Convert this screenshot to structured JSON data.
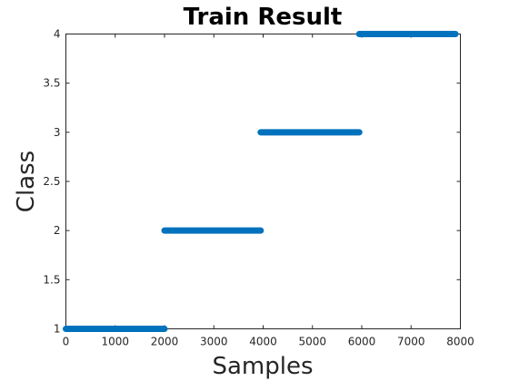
{
  "chart_data": {
    "type": "scatter",
    "title": "Train Result",
    "xlabel": "Samples",
    "ylabel": "Class",
    "xlim": [
      0,
      8000
    ],
    "ylim": [
      1,
      4
    ],
    "x_ticks": [
      0,
      1000,
      2000,
      3000,
      4000,
      5000,
      6000,
      7000,
      8000
    ],
    "y_ticks": [
      1,
      1.5,
      2,
      2.5,
      3,
      3.5,
      4
    ],
    "x_tick_labels": [
      "0",
      "1000",
      "2000",
      "3000",
      "4000",
      "5000",
      "6000",
      "7000",
      "8000"
    ],
    "y_tick_labels": [
      "1",
      "1.5",
      "2",
      "2.5",
      "3",
      "3.5",
      "4"
    ],
    "grid": false,
    "marker_color": "#0072BD",
    "series": [
      {
        "segments": [
          {
            "x_start": 0,
            "x_end": 2000,
            "y": 1
          },
          {
            "x_start": 2000,
            "x_end": 3950,
            "y": 2
          },
          {
            "x_start": 3950,
            "x_end": 5950,
            "y": 3
          },
          {
            "x_start": 5950,
            "x_end": 7900,
            "y": 4
          }
        ]
      }
    ]
  }
}
